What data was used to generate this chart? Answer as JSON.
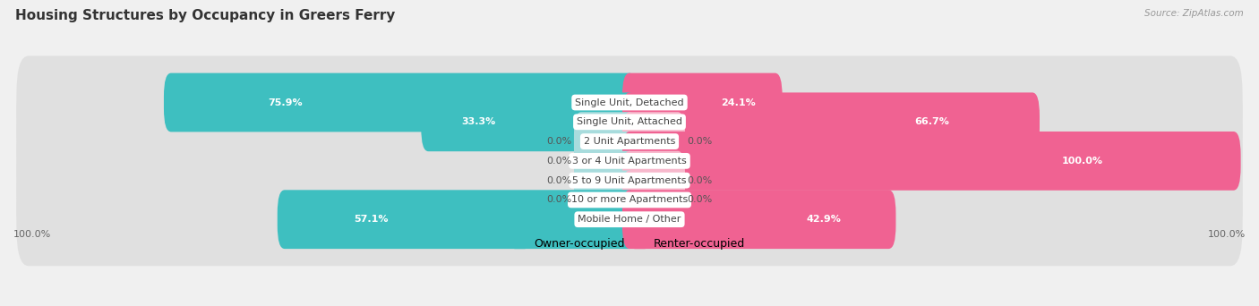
{
  "title": "Housing Structures by Occupancy in Greers Ferry",
  "source_text": "Source: ZipAtlas.com",
  "categories": [
    "Single Unit, Detached",
    "Single Unit, Attached",
    "2 Unit Apartments",
    "3 or 4 Unit Apartments",
    "5 to 9 Unit Apartments",
    "10 or more Apartments",
    "Mobile Home / Other"
  ],
  "owner_pct": [
    75.9,
    33.3,
    0.0,
    0.0,
    0.0,
    0.0,
    57.1
  ],
  "renter_pct": [
    24.1,
    66.7,
    0.0,
    100.0,
    0.0,
    0.0,
    42.9
  ],
  "owner_color": "#3EBFC0",
  "owner_color_light": "#A8DCDD",
  "renter_color": "#F06292",
  "renter_color_light": "#F7B8CC",
  "owner_label": "Owner-occupied",
  "renter_label": "Renter-occupied",
  "bg_color": "#f0f0f0",
  "row_bg_color": "#e0e0e0",
  "title_fontsize": 11,
  "label_fontsize": 8,
  "pct_fontsize": 8,
  "bar_height": 0.62,
  "x_left_label": "100.0%",
  "x_right_label": "100.0%",
  "min_stub": 5.0,
  "zero_stub": 8.0
}
